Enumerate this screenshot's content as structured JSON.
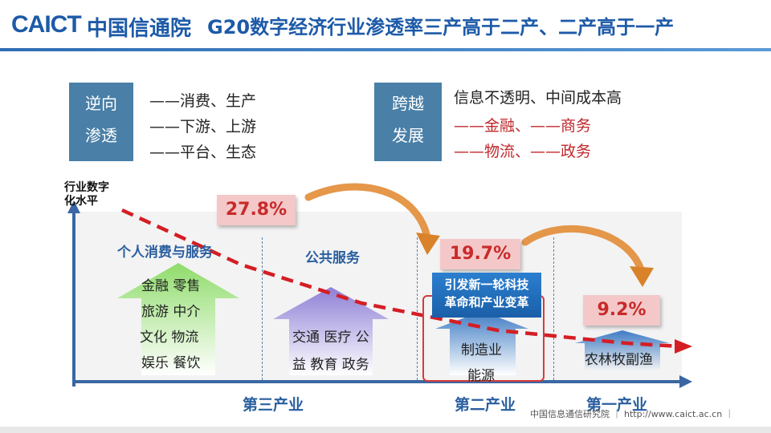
{
  "header": {
    "logo_latin": "CAICT",
    "logo_cn": "中国信通院",
    "title": "G20数字经济行业渗透率三产高于二产、二产高于一产"
  },
  "left_box": {
    "line1": "逆向",
    "line2": "渗透",
    "items": [
      "——消费、生产",
      "——下游、上游",
      "——平台、生态"
    ]
  },
  "right_box": {
    "line1": "跨越",
    "line2": "发展",
    "heading": "信息不透明、中间成本高",
    "items": [
      "——金融、——商务",
      "——物流、——政务"
    ]
  },
  "chart": {
    "y_label_line1": "行业数字",
    "y_label_line2": "化水平",
    "sections": [
      {
        "title": "个人消费与服务",
        "items": [
          "金融  零售",
          "旅游  中介",
          "文化  物流",
          "娱乐  餐饮"
        ]
      },
      {
        "title": "公共服务",
        "items": [
          "交通  医疗  公",
          "益  教育  政务"
        ]
      },
      {
        "banner_line1": "引发新一轮科技",
        "banner_line2": "革命和产业变革",
        "items": [
          "制造业",
          "能源"
        ]
      },
      {
        "items": [
          "农林牧副渔"
        ]
      }
    ],
    "industries": [
      "第三产业",
      "第二产业",
      "第一产业"
    ]
  },
  "chart_data": {
    "type": "bar",
    "categories": [
      "第三产业",
      "第二产业",
      "第一产业"
    ],
    "values": [
      27.8,
      19.7,
      9.2
    ],
    "value_labels": [
      "27.8%",
      "19.7%",
      "9.2%"
    ],
    "ylabel": "行业数字化水平",
    "trend": "decreasing"
  },
  "footer": {
    "text": "中国信息通信研究院  ｜  http://www.caict.ac.cn  ｜"
  },
  "colors": {
    "brand_blue": "#1d5aa8",
    "label_box": "#4a7fa7",
    "accent_red": "#d41e24",
    "arrow_orange": "#e0852a"
  }
}
